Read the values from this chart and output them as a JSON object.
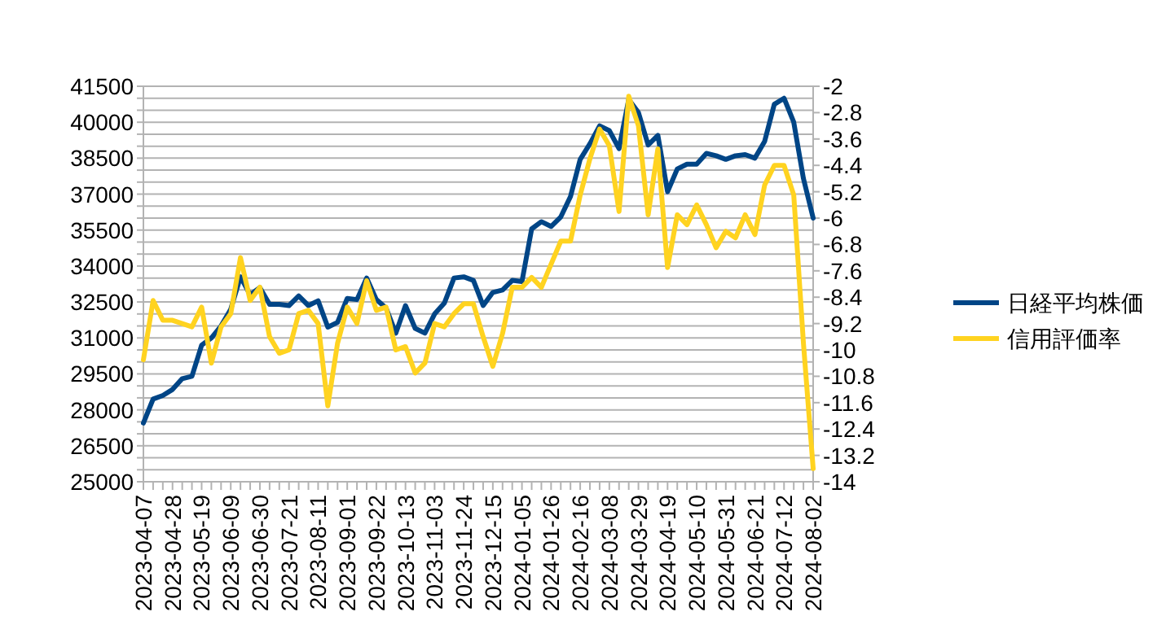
{
  "chart_data": {
    "type": "line",
    "categories": [
      "2023-04-07",
      null,
      null,
      "2023-04-28",
      null,
      null,
      "2023-05-19",
      null,
      null,
      "2023-06-09",
      null,
      null,
      "2023-06-30",
      null,
      null,
      "2023-07-21",
      null,
      null,
      "2023-08-11",
      null,
      null,
      "2023-09-01",
      null,
      null,
      "2023-09-22",
      null,
      null,
      "2023-10-13",
      null,
      null,
      "2023-11-03",
      null,
      null,
      "2023-11-24",
      null,
      null,
      "2023-12-15",
      null,
      null,
      "2024-01-05",
      null,
      null,
      "2024-01-26",
      null,
      null,
      "2024-02-16",
      null,
      null,
      "2024-03-08",
      null,
      null,
      "2024-03-29",
      null,
      null,
      "2024-04-19",
      null,
      null,
      "2024-05-10",
      null,
      null,
      "2024-05-31",
      null,
      null,
      "2024-06-21",
      null,
      null,
      "2024-07-12",
      null,
      null,
      "2024-08-02"
    ],
    "series": [
      {
        "name": "日経平均株価",
        "color": "#004586",
        "values": [
          27450,
          28450,
          28600,
          28850,
          29300,
          29400,
          30700,
          31000,
          31500,
          32200,
          33550,
          32800,
          33100,
          32400,
          32400,
          32350,
          32750,
          32350,
          32550,
          31450,
          31650,
          32650,
          32600,
          33500,
          32600,
          32250,
          31200,
          32350,
          31400,
          31200,
          32000,
          32450,
          33500,
          33550,
          33400,
          32350,
          32900,
          33000,
          33400,
          33350,
          35550,
          35850,
          35650,
          36050,
          36900,
          38450,
          39100,
          39850,
          39650,
          38900,
          40950,
          40400,
          39050,
          39450,
          37100,
          38050,
          38250,
          38250,
          38700,
          38600,
          38450,
          38600,
          38650,
          38500,
          39200,
          40750,
          41000,
          40000,
          37650,
          36000
        ]
      },
      {
        "name": "信用評価率",
        "color": "#ffd320",
        "axis": "y2",
        "values": [
          -10.3,
          -8.5,
          -9.1,
          -9.1,
          -9.2,
          -9.3,
          -8.7,
          -10.4,
          -9.3,
          -8.9,
          -7.2,
          -8.5,
          -8.1,
          -9.6,
          -10.1,
          -10.0,
          -8.9,
          -8.8,
          -9.2,
          -11.7,
          -9.8,
          -8.7,
          -9.2,
          -7.9,
          -8.8,
          -8.7,
          -10.0,
          -9.9,
          -10.7,
          -10.4,
          -9.2,
          -9.3,
          -8.9,
          -8.6,
          -8.6,
          -9.6,
          -10.5,
          -9.5,
          -8.1,
          -8.1,
          -7.8,
          -8.1,
          -7.4,
          -6.7,
          -6.7,
          -5.3,
          -4.2,
          -3.3,
          -3.8,
          -5.8,
          -2.3,
          -3.2,
          -5.9,
          -3.9,
          -7.5,
          -5.9,
          -6.2,
          -5.6,
          -6.2,
          -6.9,
          -6.4,
          -6.6,
          -5.9,
          -6.5,
          -5.0,
          -4.4,
          -4.4,
          -5.3,
          -9.8,
          -13.6
        ]
      }
    ],
    "ylim": [
      25000,
      41500
    ],
    "yticks": [
      25000,
      {
        "value": 25500,
        "label": null
      },
      {
        "value": 26000,
        "label": null
      },
      26500,
      {
        "value": 27000,
        "label": null
      },
      {
        "value": 27500,
        "label": null
      },
      28000,
      {
        "value": 28500,
        "label": null
      },
      {
        "value": 29000,
        "label": null
      },
      29500,
      {
        "value": 30000,
        "label": null
      },
      {
        "value": 30500,
        "label": null
      },
      31000,
      {
        "value": 31500,
        "label": null
      },
      {
        "value": 32000,
        "label": null
      },
      32500,
      {
        "value": 33000,
        "label": null
      },
      {
        "value": 33500,
        "label": null
      },
      34000,
      {
        "value": 34500,
        "label": null
      },
      {
        "value": 35000,
        "label": null
      },
      35500,
      {
        "value": 36000,
        "label": null
      },
      {
        "value": 36500,
        "label": null
      },
      37000,
      {
        "value": 37500,
        "label": null
      },
      {
        "value": 38000,
        "label": null
      },
      38500,
      {
        "value": 39000,
        "label": null
      },
      {
        "value": 39500,
        "label": null
      },
      40000,
      {
        "value": 40500,
        "label": null
      },
      {
        "value": 41000,
        "label": null
      },
      41500
    ],
    "y2lim": [
      -14,
      -2
    ],
    "y2ticks": [
      -14,
      -13.2,
      -12.4,
      -11.6,
      -10.8,
      -10,
      -9.2,
      -8.4,
      -7.6,
      -6.8,
      -6,
      -5.2,
      -4.4,
      -3.6,
      -2.8,
      -2
    ],
    "grid": "y",
    "legend": "right",
    "marker": "none",
    "line_style": "solid"
  }
}
